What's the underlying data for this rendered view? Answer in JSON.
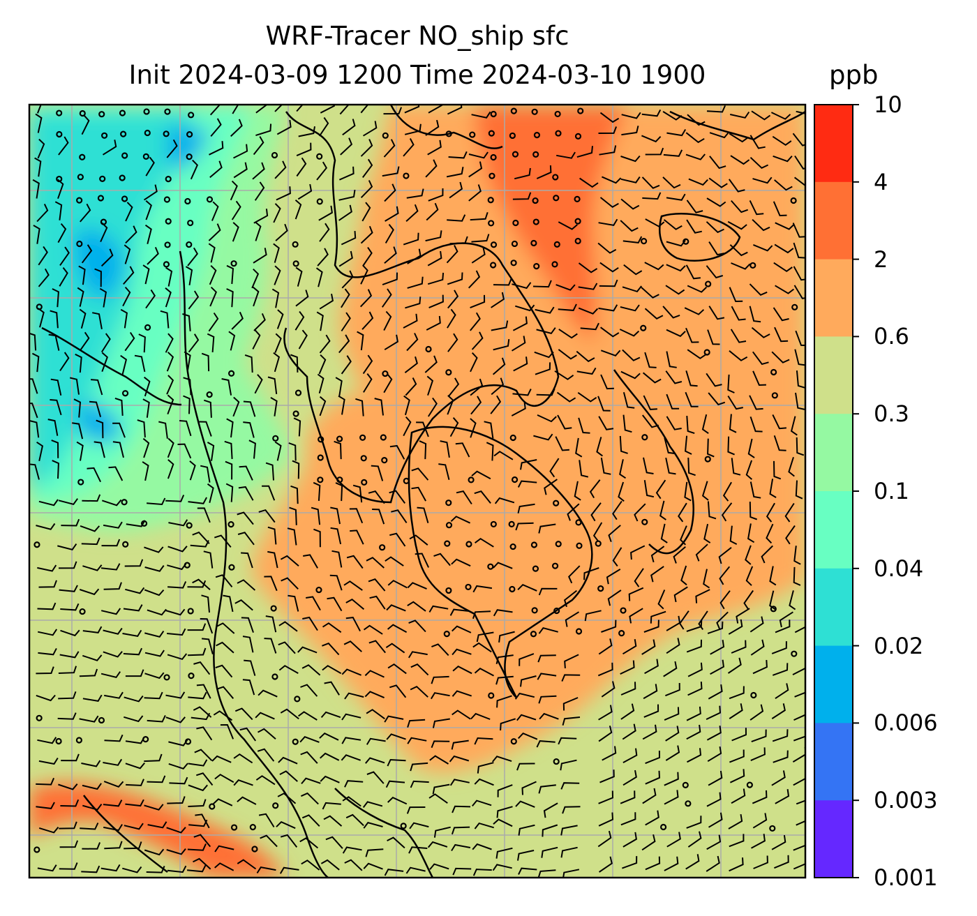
{
  "figure": {
    "title_line1": "WRF-Tracer NO_ship sfc",
    "title_line2": "Init 2024-03-09 1200 Time 2024-03-10 1900",
    "units": "ppb"
  },
  "colorbar": {
    "levels": [
      "10",
      "4",
      "2",
      "0.6",
      "0.3",
      "0.1",
      "0.04",
      "0.02",
      "0.006",
      "0.003",
      "0.001"
    ],
    "colors_top_to_bottom": [
      "#ff2b12",
      "#ff7034",
      "#ffaa5c",
      "#cfe08a",
      "#95f9a2",
      "#68ffc2",
      "#2ee0d4",
      "#00b0ec",
      "#3474f4",
      "#6528ff"
    ]
  },
  "map": {
    "fill_colors": {
      "low": "#2ee0d4",
      "mid_low": "#68ffc2",
      "mid": "#95f9a2",
      "light": "#cfe08a",
      "orange": "#ffaa5c",
      "dark_orange": "#ff7034",
      "red": "#ff2b12",
      "blue": "#00b0ec"
    },
    "gridline_color": "#aaaaaa",
    "coastline_color": "#000000"
  }
}
